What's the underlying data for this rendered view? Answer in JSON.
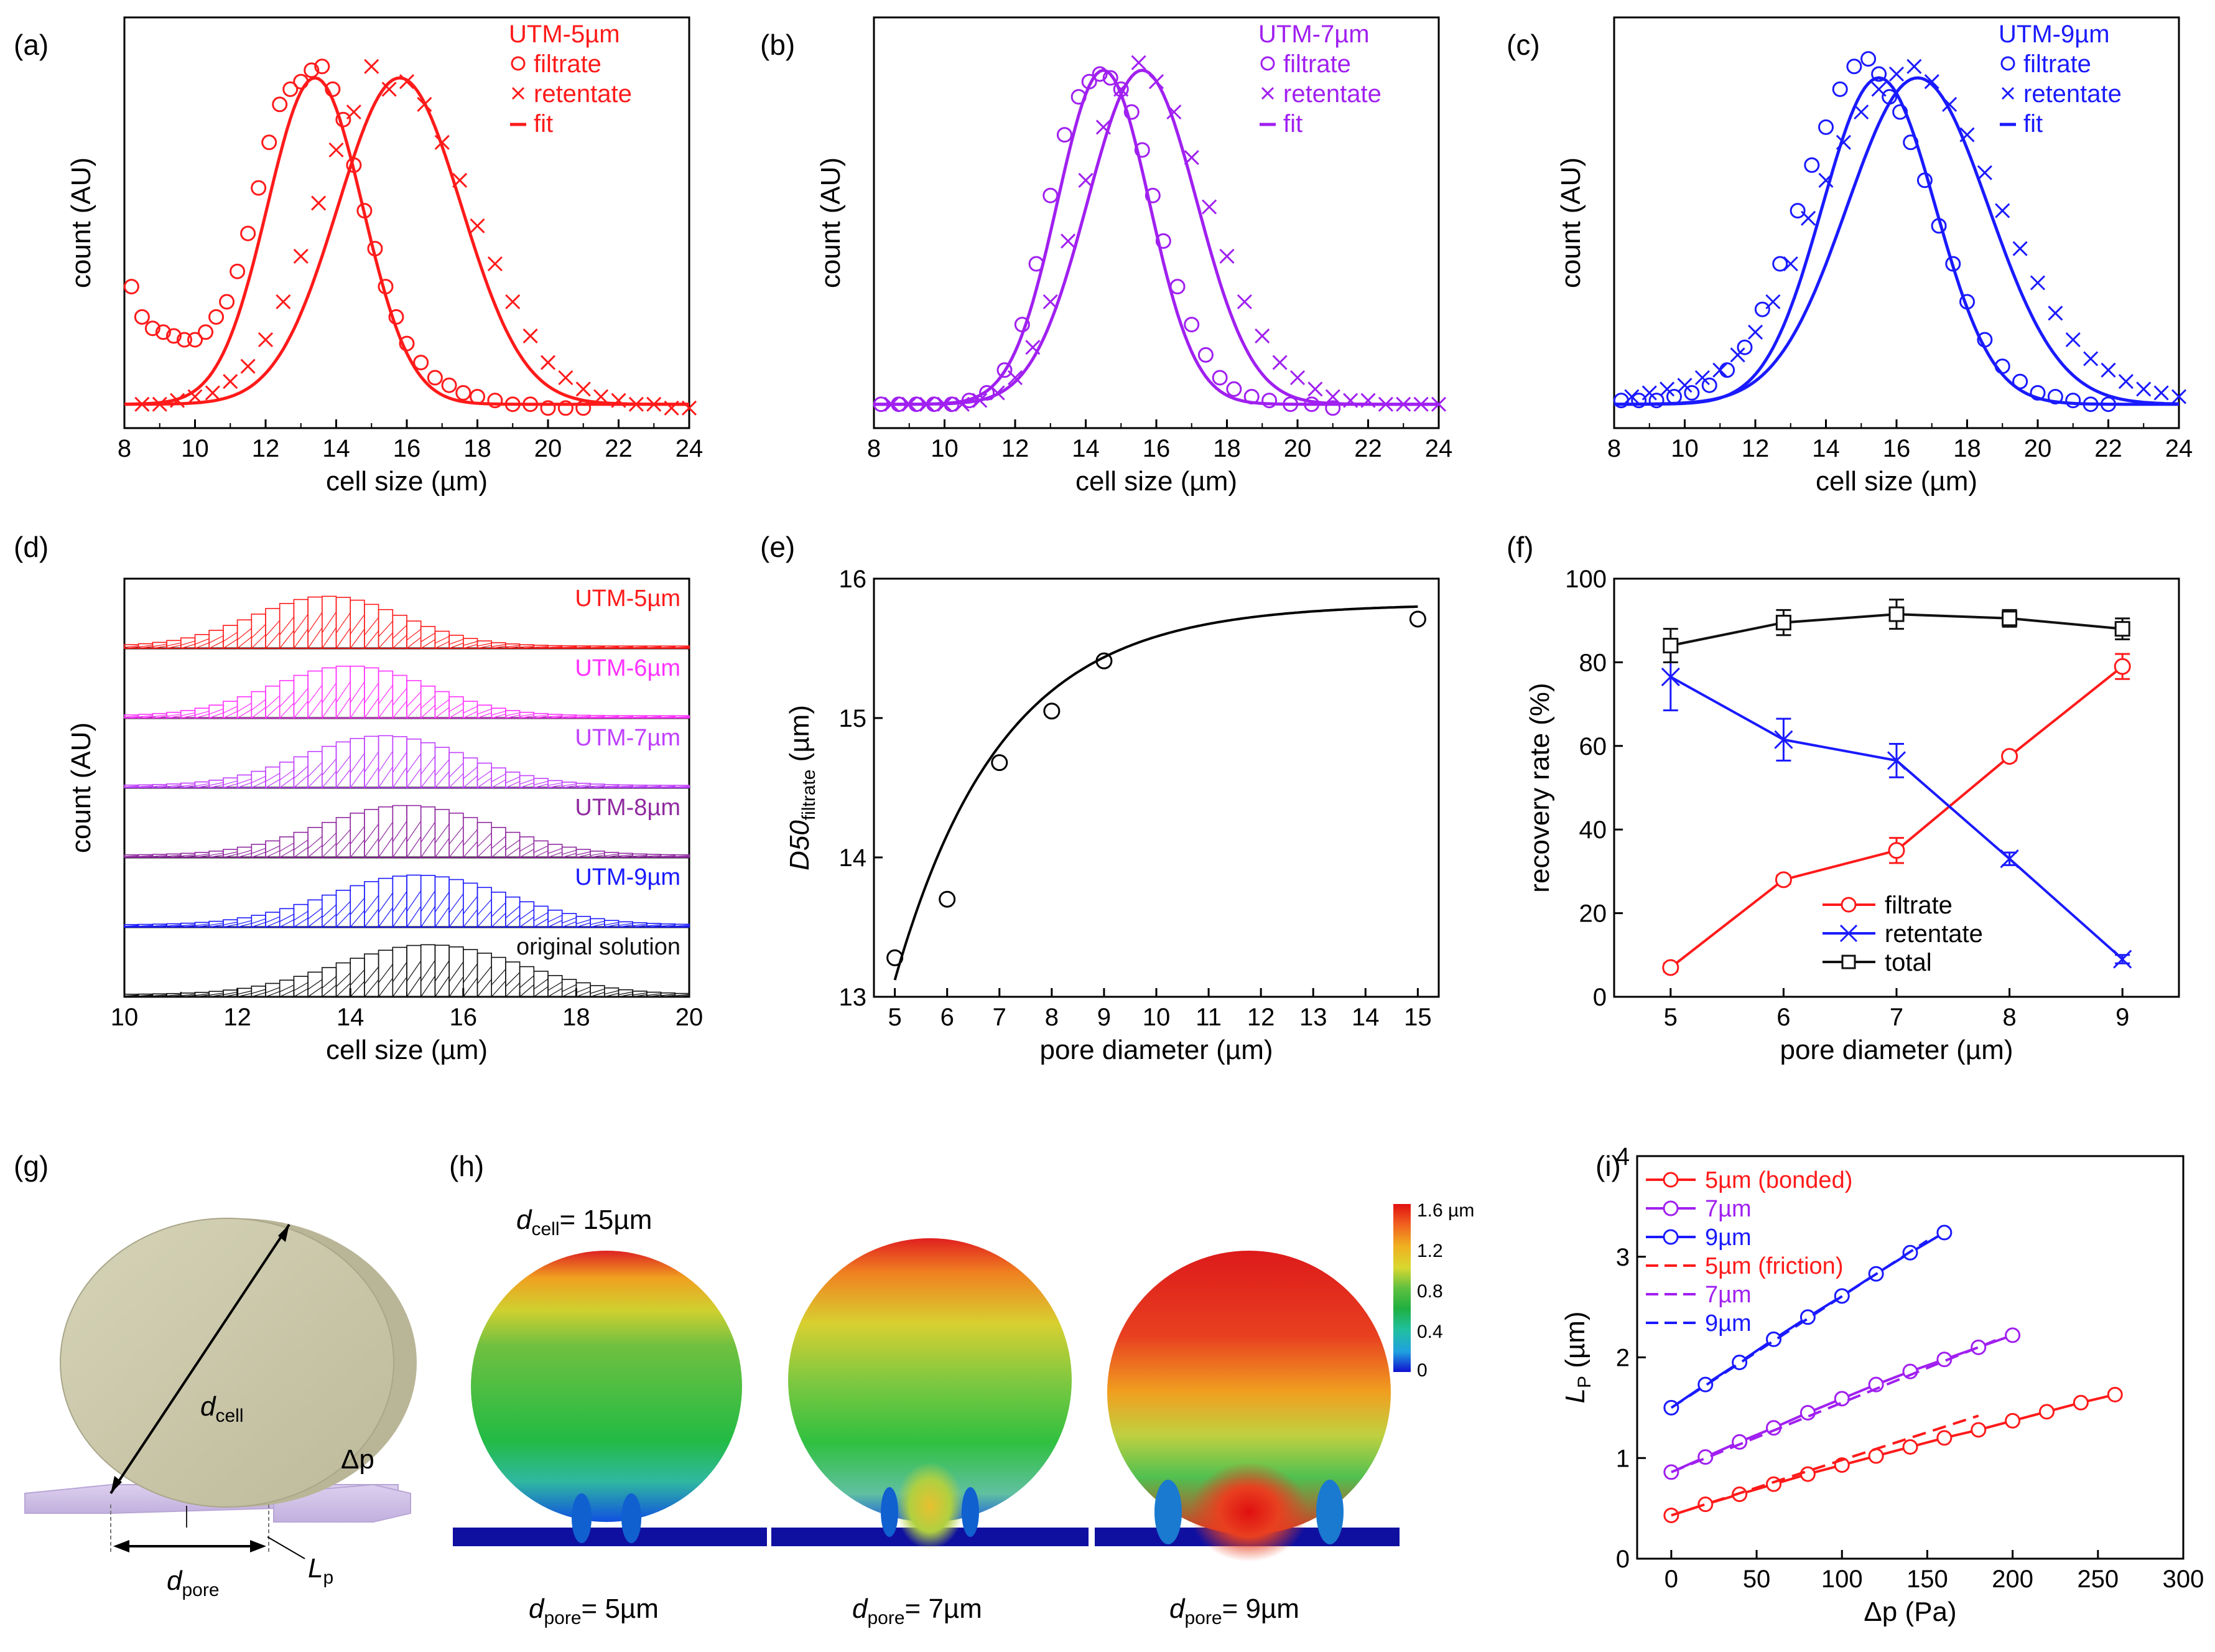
{
  "figure": {
    "colors": {
      "red": "#ff1a1a",
      "purple": "#a020f0",
      "blue": "#1a1aff",
      "black": "#111111",
      "magenta": "#ff33ff",
      "violet": "#c040ff",
      "darkviolet": "#902aa0"
    }
  },
  "chart_data": [
    {
      "panel": "(a)",
      "type": "scatter",
      "xlabel": "cell size (µm)",
      "ylabel": "count (AU)",
      "xlim": [
        8,
        24
      ],
      "xticks": [
        "8",
        "10",
        "12",
        "14",
        "16",
        "18",
        "20",
        "22",
        "24"
      ],
      "legend": {
        "title": "UTM-5µm",
        "items": [
          "filtrate",
          "retentate",
          "fit"
        ],
        "position": "top-right"
      },
      "color": "red",
      "series": [
        {
          "name": "filtrate",
          "marker": "circle",
          "fit": {
            "mu": 13.4,
            "sigma": 1.35,
            "amp": 0.86
          },
          "x": [
            8.2,
            8.5,
            8.8,
            9.1,
            9.4,
            9.7,
            10.0,
            10.3,
            10.6,
            10.9,
            11.2,
            11.5,
            11.8,
            12.1,
            12.4,
            12.7,
            13.0,
            13.3,
            13.6,
            13.9,
            14.2,
            14.5,
            14.8,
            15.1,
            15.4,
            15.7,
            16.0,
            16.4,
            16.8,
            17.2,
            17.6,
            18.0,
            18.5,
            19.0,
            19.5,
            20.0,
            20.5,
            21.0
          ],
          "y": [
            0.34,
            0.26,
            0.23,
            0.22,
            0.21,
            0.2,
            0.2,
            0.22,
            0.26,
            0.3,
            0.38,
            0.48,
            0.6,
            0.72,
            0.82,
            0.86,
            0.88,
            0.91,
            0.92,
            0.86,
            0.78,
            0.66,
            0.54,
            0.44,
            0.34,
            0.26,
            0.19,
            0.14,
            0.1,
            0.08,
            0.06,
            0.05,
            0.04,
            0.03,
            0.03,
            0.02,
            0.02,
            0.02
          ]
        },
        {
          "name": "retentate",
          "marker": "x",
          "fit": {
            "mu": 15.8,
            "sigma": 1.75,
            "amp": 0.86
          },
          "x": [
            8.5,
            9.0,
            9.5,
            10.0,
            10.5,
            11.0,
            11.5,
            12.0,
            12.5,
            13.0,
            13.5,
            14.0,
            14.5,
            15.0,
            15.5,
            16.0,
            16.5,
            17.0,
            17.5,
            18.0,
            18.5,
            19.0,
            19.5,
            20.0,
            20.5,
            21.0,
            21.5,
            22.0,
            22.5,
            23.0,
            23.5,
            24.0
          ],
          "y": [
            0.03,
            0.03,
            0.04,
            0.05,
            0.06,
            0.09,
            0.13,
            0.2,
            0.3,
            0.42,
            0.56,
            0.7,
            0.8,
            0.92,
            0.86,
            0.88,
            0.82,
            0.72,
            0.62,
            0.5,
            0.4,
            0.3,
            0.21,
            0.14,
            0.1,
            0.07,
            0.05,
            0.04,
            0.03,
            0.03,
            0.02,
            0.02
          ]
        }
      ]
    },
    {
      "panel": "(b)",
      "type": "scatter",
      "xlabel": "cell size (µm)",
      "ylabel": "count (AU)",
      "xlim": [
        8,
        24
      ],
      "xticks": [
        "8",
        "10",
        "12",
        "14",
        "16",
        "18",
        "20",
        "22",
        "24"
      ],
      "legend": {
        "title": "UTM-7µm",
        "items": [
          "filtrate",
          "retentate",
          "fit"
        ],
        "position": "top-right"
      },
      "color": "purple",
      "series": [
        {
          "name": "filtrate",
          "marker": "circle",
          "fit": {
            "mu": 14.5,
            "sigma": 1.3,
            "amp": 0.88
          },
          "x": [
            8.2,
            8.7,
            9.2,
            9.7,
            10.2,
            10.7,
            11.2,
            11.7,
            12.2,
            12.6,
            13.0,
            13.4,
            13.8,
            14.1,
            14.4,
            14.7,
            15.0,
            15.3,
            15.6,
            15.9,
            16.2,
            16.6,
            17.0,
            17.4,
            17.8,
            18.2,
            18.7,
            19.2,
            19.8,
            20.4,
            21.0
          ],
          "y": [
            0.03,
            0.03,
            0.03,
            0.03,
            0.03,
            0.04,
            0.06,
            0.12,
            0.24,
            0.4,
            0.58,
            0.74,
            0.84,
            0.88,
            0.9,
            0.89,
            0.86,
            0.8,
            0.7,
            0.58,
            0.46,
            0.34,
            0.24,
            0.16,
            0.1,
            0.07,
            0.05,
            0.04,
            0.03,
            0.03,
            0.02
          ]
        },
        {
          "name": "retentate",
          "marker": "x",
          "fit": {
            "mu": 15.6,
            "sigma": 1.55,
            "amp": 0.88
          },
          "x": [
            8.5,
            9.0,
            9.5,
            10.0,
            10.5,
            11.0,
            11.5,
            12.0,
            12.5,
            13.0,
            13.5,
            14.0,
            14.5,
            15.0,
            15.5,
            16.0,
            16.5,
            17.0,
            17.5,
            18.0,
            18.5,
            19.0,
            19.5,
            20.0,
            20.5,
            21.0,
            21.5,
            22.0,
            22.5,
            23.0,
            23.5,
            24.0
          ],
          "y": [
            0.03,
            0.03,
            0.03,
            0.03,
            0.03,
            0.04,
            0.06,
            0.1,
            0.18,
            0.3,
            0.46,
            0.62,
            0.76,
            0.86,
            0.93,
            0.88,
            0.8,
            0.68,
            0.55,
            0.42,
            0.3,
            0.21,
            0.14,
            0.1,
            0.07,
            0.05,
            0.04,
            0.04,
            0.03,
            0.03,
            0.03,
            0.03
          ]
        }
      ]
    },
    {
      "panel": "(c)",
      "type": "scatter",
      "xlabel": "cell size (µm)",
      "ylabel": "count (AU)",
      "xlim": [
        8,
        24
      ],
      "xticks": [
        "8",
        "10",
        "12",
        "14",
        "16",
        "18",
        "20",
        "22",
        "24"
      ],
      "legend": {
        "title": "UTM-9µm",
        "items": [
          "filtrate",
          "retentate",
          "fit"
        ],
        "position": "top-right"
      },
      "color": "blue",
      "series": [
        {
          "name": "filtrate",
          "marker": "circle",
          "fit": {
            "mu": 15.5,
            "sigma": 1.6,
            "amp": 0.86
          },
          "x": [
            8.2,
            8.7,
            9.2,
            9.7,
            10.2,
            10.7,
            11.2,
            11.7,
            12.2,
            12.7,
            13.2,
            13.6,
            14.0,
            14.4,
            14.8,
            15.2,
            15.5,
            15.8,
            16.1,
            16.4,
            16.8,
            17.2,
            17.6,
            18.0,
            18.5,
            19.0,
            19.5,
            20.0,
            20.5,
            21.0,
            21.5,
            22.0
          ],
          "y": [
            0.04,
            0.04,
            0.04,
            0.05,
            0.06,
            0.08,
            0.12,
            0.18,
            0.28,
            0.4,
            0.54,
            0.66,
            0.76,
            0.86,
            0.92,
            0.94,
            0.9,
            0.84,
            0.8,
            0.72,
            0.62,
            0.5,
            0.4,
            0.3,
            0.2,
            0.13,
            0.09,
            0.06,
            0.05,
            0.04,
            0.03,
            0.03
          ]
        },
        {
          "name": "retentate",
          "marker": "x",
          "fit": {
            "mu": 16.6,
            "sigma": 2.0,
            "amp": 0.86
          },
          "x": [
            8.5,
            9.0,
            9.5,
            10.0,
            10.5,
            11.0,
            11.5,
            12.0,
            12.5,
            13.0,
            13.5,
            14.0,
            14.5,
            15.0,
            15.5,
            16.0,
            16.5,
            17.0,
            17.5,
            18.0,
            18.5,
            19.0,
            19.5,
            20.0,
            20.5,
            21.0,
            21.5,
            22.0,
            22.5,
            23.0,
            23.5,
            24.0
          ],
          "y": [
            0.05,
            0.06,
            0.07,
            0.08,
            0.1,
            0.12,
            0.16,
            0.22,
            0.3,
            0.4,
            0.52,
            0.62,
            0.72,
            0.8,
            0.86,
            0.9,
            0.92,
            0.88,
            0.82,
            0.74,
            0.64,
            0.54,
            0.44,
            0.35,
            0.27,
            0.2,
            0.15,
            0.12,
            0.09,
            0.07,
            0.06,
            0.05
          ]
        }
      ]
    },
    {
      "panel": "(d)",
      "type": "bar",
      "xlabel": "cell size (µm)",
      "ylabel": "count (AU)",
      "xlim": [
        10,
        20
      ],
      "xticks": [
        "10",
        "12",
        "14",
        "16",
        "18",
        "20"
      ],
      "series": [
        {
          "name": "UTM-5µm",
          "color": "red",
          "mu": 13.6,
          "sigma": 1.3
        },
        {
          "name": "UTM-6µm",
          "color": "magenta",
          "mu": 14.0,
          "sigma": 1.35
        },
        {
          "name": "UTM-7µm",
          "color": "violet",
          "mu": 14.6,
          "sigma": 1.4
        },
        {
          "name": "UTM-8µm",
          "color": "darkviolet",
          "mu": 15.0,
          "sigma": 1.5
        },
        {
          "name": "UTM-9µm",
          "color": "blue",
          "mu": 15.2,
          "sigma": 1.55
        },
        {
          "name": "original solution",
          "color": "black",
          "mu": 15.4,
          "sigma": 1.6
        }
      ]
    },
    {
      "panel": "(e)",
      "type": "scatter",
      "xlabel": "pore diameter (µm)",
      "ylabel_main": "D50",
      "ylabel_sub": "filtrate",
      "ylabel_unit": " (µm)",
      "xlim": [
        4.6,
        15.4
      ],
      "ylim": [
        13,
        16
      ],
      "xticks": [
        "5",
        "6",
        "7",
        "8",
        "9",
        "10",
        "11",
        "12",
        "13",
        "14",
        "15"
      ],
      "yticks": [
        "13",
        "14",
        "15",
        "16"
      ],
      "x": [
        5,
        6,
        7,
        8,
        9,
        15
      ],
      "y": [
        13.28,
        13.7,
        14.68,
        15.05,
        15.41,
        15.71
      ],
      "fit": {
        "x0": 5.0,
        "x1": 15.0,
        "y_inf": 15.82,
        "amp": 2.7,
        "tau": 2.05
      }
    },
    {
      "panel": "(f)",
      "type": "line",
      "xlabel": "pore diameter (µm)",
      "ylabel": "recovery rate (%)",
      "xlim": [
        4.5,
        9.5
      ],
      "ylim": [
        0,
        100
      ],
      "xticks": [
        "5",
        "6",
        "7",
        "8",
        "9"
      ],
      "yticks": [
        "0",
        "20",
        "40",
        "60",
        "80",
        "100"
      ],
      "x": [
        5,
        6,
        7,
        8,
        9
      ],
      "legend_position": "bottom-center",
      "series": [
        {
          "name": "filtrate",
          "color": "red",
          "marker": "circle",
          "values": [
            7,
            28,
            35,
            57.5,
            79
          ],
          "err": [
            1,
            1,
            3,
            1,
            3
          ]
        },
        {
          "name": "retentate",
          "color": "blue",
          "marker": "x",
          "values": [
            76.5,
            61.5,
            56.5,
            33,
            9
          ],
          "err": [
            8,
            5,
            4,
            1.5,
            1
          ]
        },
        {
          "name": "total",
          "color": "black",
          "marker": "square",
          "values": [
            84,
            89.5,
            91.5,
            90.5,
            88
          ],
          "err": [
            4,
            3,
            3.5,
            2,
            2.5
          ]
        }
      ]
    },
    {
      "panel": "(i)",
      "type": "line",
      "xlabel_main": "Δp",
      "xlabel_unit": " (Pa)",
      "ylabel_main": "L",
      "ylabel_sub": "P",
      "ylabel_unit": " (µm)",
      "xlim": [
        -20,
        300
      ],
      "ylim": [
        0,
        4
      ],
      "xticks": [
        "0",
        "50",
        "100",
        "150",
        "200",
        "250",
        "300"
      ],
      "yticks": [
        "0",
        "1",
        "2",
        "3",
        "4"
      ],
      "legend_position": "top-left",
      "series": [
        {
          "name": "5µm (bonded)",
          "color": "red",
          "style": "solid-circle",
          "x": [
            0,
            20,
            40,
            60,
            80,
            100,
            120,
            140,
            160,
            180,
            200,
            220,
            240,
            260
          ],
          "y": [
            0.43,
            0.54,
            0.64,
            0.74,
            0.84,
            0.93,
            1.02,
            1.11,
            1.2,
            1.28,
            1.37,
            1.46,
            1.55,
            1.63
          ]
        },
        {
          "name": "7µm",
          "color": "purple",
          "style": "solid-circle",
          "x": [
            0,
            20,
            40,
            60,
            80,
            100,
            120,
            140,
            160,
            180,
            200
          ],
          "y": [
            0.86,
            1.01,
            1.16,
            1.3,
            1.45,
            1.59,
            1.73,
            1.86,
            1.98,
            2.1,
            2.22
          ]
        },
        {
          "name": "9µm",
          "color": "blue",
          "style": "solid-circle",
          "x": [
            0,
            20,
            40,
            60,
            80,
            100,
            120,
            140,
            160
          ],
          "y": [
            1.5,
            1.73,
            1.95,
            2.18,
            2.4,
            2.61,
            2.83,
            3.04,
            3.24
          ]
        },
        {
          "name": "5µm (friction)",
          "color": "red",
          "style": "dashed",
          "x": [
            0,
            180
          ],
          "y": [
            0.43,
            1.42
          ]
        },
        {
          "name": "7µm",
          "color": "purple",
          "style": "dashed",
          "x": [
            0,
            190
          ],
          "y": [
            0.86,
            2.17
          ]
        },
        {
          "name": "9µm",
          "color": "blue",
          "style": "dashed",
          "x": [
            0,
            150
          ],
          "y": [
            1.5,
            3.16
          ]
        }
      ]
    }
  ],
  "diagram_g": {
    "panel": "(g)",
    "label_d_cell": "d",
    "label_d_cell_sub": "cell",
    "label_dp": "Δp",
    "label_d_pore": "d",
    "label_d_pore_sub": "pore",
    "label_Lp": "L",
    "label_Lp_sub": "p"
  },
  "sim_h": {
    "panel": "(h)",
    "cell_label": "d",
    "cell_label_sub": "cell",
    "cell_label_value": "= 15µm",
    "colorbar_ticks": [
      "1.6 µm",
      "1.2",
      "0.8",
      "0.4",
      "0"
    ],
    "pore_labels": [
      {
        "d": "d",
        "sub": "pore",
        "value": "= 5µm"
      },
      {
        "d": "d",
        "sub": "pore",
        "value": "= 7µm"
      },
      {
        "d": "d",
        "sub": "pore",
        "value": "= 9µm"
      }
    ]
  }
}
